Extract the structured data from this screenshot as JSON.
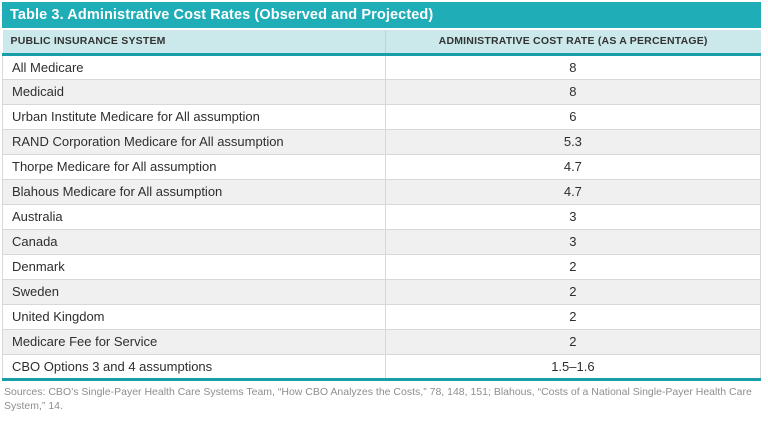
{
  "accent": {
    "title_bar_bg": "#1fadb8",
    "header_row_bg": "#cbe8eb",
    "separator_teal": "#189ea9",
    "alt_row_bg": "#f0f0f1",
    "row_border": "#d8d8d8",
    "footer_text": "#8e8e8e"
  },
  "table": {
    "title": "Table 3. Administrative Cost Rates (Observed and Projected)",
    "columns": [
      "PUBLIC INSURANCE SYSTEM",
      "ADMINISTRATIVE COST RATE (AS A PERCENTAGE)"
    ],
    "rows": [
      {
        "system": "All Medicare",
        "rate": "8"
      },
      {
        "system": "Medicaid",
        "rate": "8"
      },
      {
        "system": "Urban Institute Medicare for All assumption",
        "rate": "6"
      },
      {
        "system": "RAND Corporation Medicare for All assumption",
        "rate": "5.3"
      },
      {
        "system": "Thorpe Medicare for All assumption",
        "rate": "4.7"
      },
      {
        "system": "Blahous Medicare for All assumption",
        "rate": "4.7"
      },
      {
        "system": "Australia",
        "rate": "3"
      },
      {
        "system": "Canada",
        "rate": "3"
      },
      {
        "system": "Denmark",
        "rate": "2"
      },
      {
        "system": "Sweden",
        "rate": "2"
      },
      {
        "system": "United Kingdom",
        "rate": "2"
      },
      {
        "system": "Medicare Fee for Service",
        "rate": "2"
      },
      {
        "system": "CBO Options 3 and 4 assumptions",
        "rate": "1.5–1.6"
      }
    ],
    "sources": "Sources: CBO’s Single-Payer Health Care Systems Team, “How CBO Analyzes the Costs,” 78, 148, 151; Blahous, “Costs of a National Single-Payer Health Care System,” 14."
  }
}
